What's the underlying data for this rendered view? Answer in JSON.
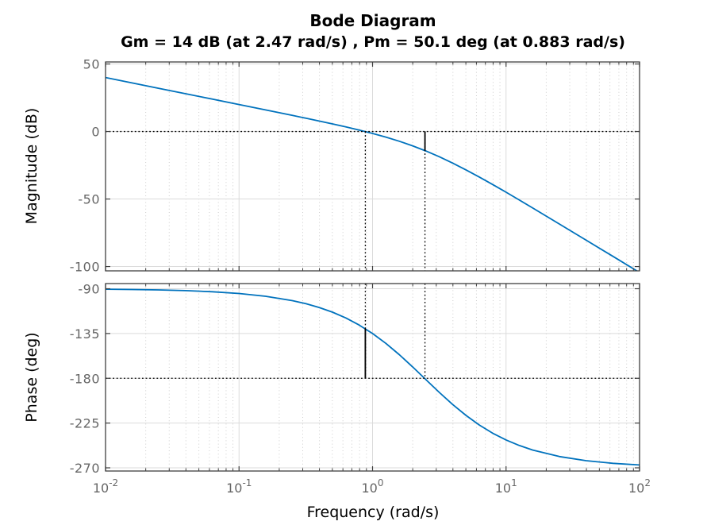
{
  "figure": {
    "title": "Bode Diagram",
    "subtitle": "Gm = 14 dB (at 2.47 rad/s) ,  Pm = 50.1 deg (at 0.883 rad/s)",
    "xlabel": "Frequency  (rad/s)"
  },
  "colors": {
    "curve": "#0072BD",
    "axis_box": "#3f3f3f",
    "tick": "#3f3f3f",
    "tick_label": "#666666",
    "grid_major": "#dbdbdb",
    "grid_minor": "#cdcdcd",
    "margin_marker": "#000000",
    "background": "#ffffff"
  },
  "margins": {
    "gm_db": 14,
    "gm_freq_rad_s": 2.47,
    "pm_deg": 50.1,
    "pm_freq_rad_s": 0.883
  },
  "chart_data": [
    {
      "type": "line",
      "name": "magnitude-plot",
      "title": "Bode Diagram",
      "ylabel": "Magnitude (dB)",
      "xscale": "log",
      "grid": true,
      "minor_grid": true,
      "xlim": [
        0.01,
        100
      ],
      "ylim": [
        -103.2,
        51.5
      ],
      "yticks": [
        50,
        0,
        -50,
        -100
      ],
      "x": [
        0.01,
        0.0158,
        0.0251,
        0.0398,
        0.0631,
        0.1,
        0.158,
        0.251,
        0.316,
        0.398,
        0.501,
        0.631,
        0.794,
        1.0,
        1.259,
        1.585,
        1.995,
        2.512,
        3.162,
        3.981,
        5.012,
        6.31,
        7.943,
        10,
        12.59,
        15.85,
        25.12,
        39.81,
        63.1,
        100
      ],
      "y": [
        40.0,
        36.0,
        32.0,
        28.0,
        23.99,
        19.98,
        15.96,
        11.9,
        9.84,
        7.76,
        5.62,
        3.4,
        1.07,
        -1.43,
        -4.15,
        -7.19,
        -10.59,
        -14.42,
        -18.69,
        -23.37,
        -28.41,
        -33.74,
        -39.28,
        -44.98,
        -50.79,
        -56.66,
        -68.53,
        -80.47,
        -92.45,
        -104.44
      ],
      "markers": {
        "hline": 0,
        "vlines": [
          0.883,
          2.47
        ],
        "vline_span": "below",
        "solid_segment": {
          "x": 2.47,
          "y1": 0,
          "y2": -14
        }
      }
    },
    {
      "type": "line",
      "name": "phase-plot",
      "ylabel": "Phase (deg)",
      "xlabel": "Frequency  (rad/s)",
      "xscale": "log",
      "grid": true,
      "minor_grid": true,
      "xlim": [
        0.01,
        100
      ],
      "ylim": [
        -273.2,
        -84.8
      ],
      "yticks": [
        -90,
        -135,
        -180,
        -225,
        -270
      ],
      "xticks": [
        0.01,
        0.1,
        1,
        10,
        100
      ],
      "xtick_labels": [
        {
          "base": "10",
          "exp": "-2"
        },
        {
          "base": "10",
          "exp": "-1"
        },
        {
          "base": "10",
          "exp": "0"
        },
        {
          "base": "10",
          "exp": "1"
        },
        {
          "base": "10",
          "exp": "2"
        }
      ],
      "x": [
        0.01,
        0.0158,
        0.0251,
        0.0398,
        0.0631,
        0.1,
        0.158,
        0.251,
        0.316,
        0.398,
        0.501,
        0.631,
        0.794,
        1.0,
        1.259,
        1.585,
        1.995,
        2.512,
        3.162,
        3.981,
        5.012,
        6.31,
        7.943,
        10,
        12.59,
        15.85,
        25.12,
        39.81,
        63.1,
        100
      ],
      "y": [
        -90.48,
        -90.76,
        -91.2,
        -91.9,
        -93.01,
        -94.77,
        -97.56,
        -101.94,
        -105.0,
        -108.81,
        -113.56,
        -119.38,
        -126.49,
        -135.0,
        -144.95,
        -156.24,
        -168.56,
        -181.42,
        -194.2,
        -206.33,
        -217.35,
        -226.99,
        -235.17,
        -241.99,
        -247.57,
        -252.09,
        -258.64,
        -262.81,
        -265.46,
        -267.14
      ],
      "markers": {
        "hline": -180,
        "vlines": [
          0.883,
          2.47
        ],
        "vline_span": "above",
        "solid_segment": {
          "x": 0.883,
          "y1": -129.9,
          "y2": -180
        }
      }
    }
  ]
}
